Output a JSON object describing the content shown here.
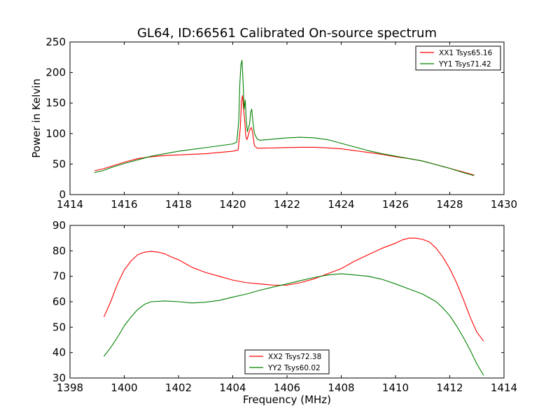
{
  "title": "GL64, ID:66561 Calibrated On-source spectrum",
  "colors": {
    "red": "#ff0000",
    "green": "#008000"
  },
  "chart_data": [
    {
      "type": "line",
      "xlim": [
        1414,
        1430
      ],
      "ylim": [
        0,
        250
      ],
      "xticks": [
        1414,
        1416,
        1418,
        1420,
        1422,
        1424,
        1426,
        1428,
        1430
      ],
      "yticks": [
        0,
        50,
        100,
        150,
        200,
        250
      ],
      "xlabel": "",
      "ylabel": "Power in Kelvin",
      "legend_position": "top-right",
      "grid": false,
      "series": [
        {
          "name": "XX1 Tsys65.16",
          "color": "#ff0000",
          "points": [
            [
              1414.9,
              39
            ],
            [
              1415.2,
              42
            ],
            [
              1415.5,
              46
            ],
            [
              1416,
              53
            ],
            [
              1416.5,
              59
            ],
            [
              1417,
              62
            ],
            [
              1417.5,
              64
            ],
            [
              1418,
              65
            ],
            [
              1418.5,
              66
            ],
            [
              1419,
              67
            ],
            [
              1419.5,
              69
            ],
            [
              1420,
              71
            ],
            [
              1420.2,
              73
            ],
            [
              1420.28,
              110
            ],
            [
              1420.32,
              152
            ],
            [
              1420.36,
              162
            ],
            [
              1420.4,
              140
            ],
            [
              1420.44,
              122
            ],
            [
              1420.48,
              96
            ],
            [
              1420.52,
              90
            ],
            [
              1420.56,
              95
            ],
            [
              1420.6,
              102
            ],
            [
              1420.64,
              107
            ],
            [
              1420.68,
              110
            ],
            [
              1420.72,
              105
            ],
            [
              1420.76,
              92
            ],
            [
              1420.8,
              80
            ],
            [
              1420.9,
              76
            ],
            [
              1421,
              76
            ],
            [
              1421.5,
              76.5
            ],
            [
              1422,
              77
            ],
            [
              1422.5,
              77.5
            ],
            [
              1423,
              77.5
            ],
            [
              1423.5,
              76.5
            ],
            [
              1424,
              75
            ],
            [
              1424.5,
              72
            ],
            [
              1425,
              69
            ],
            [
              1425.5,
              66
            ],
            [
              1426,
              62
            ],
            [
              1426.5,
              59
            ],
            [
              1427,
              55
            ],
            [
              1427.5,
              49
            ],
            [
              1428,
              43
            ],
            [
              1428.5,
              37
            ],
            [
              1428.9,
              32
            ]
          ]
        },
        {
          "name": "YY1 Tsys71.42",
          "color": "#008000",
          "points": [
            [
              1414.9,
              36
            ],
            [
              1415.2,
              39
            ],
            [
              1415.5,
              44
            ],
            [
              1416,
              51
            ],
            [
              1416.5,
              57
            ],
            [
              1417,
              63
            ],
            [
              1417.5,
              67
            ],
            [
              1418,
              71
            ],
            [
              1418.5,
              74
            ],
            [
              1419,
              77
            ],
            [
              1419.5,
              80
            ],
            [
              1420,
              83
            ],
            [
              1420.15,
              86
            ],
            [
              1420.22,
              120
            ],
            [
              1420.26,
              180
            ],
            [
              1420.3,
              212
            ],
            [
              1420.34,
              220
            ],
            [
              1420.38,
              185
            ],
            [
              1420.42,
              140
            ],
            [
              1420.46,
              155
            ],
            [
              1420.5,
              120
            ],
            [
              1420.54,
              103
            ],
            [
              1420.58,
              110
            ],
            [
              1420.62,
              115
            ],
            [
              1420.66,
              135
            ],
            [
              1420.7,
              140
            ],
            [
              1420.74,
              120
            ],
            [
              1420.8,
              100
            ],
            [
              1420.9,
              91
            ],
            [
              1421,
              89
            ],
            [
              1421.5,
              91
            ],
            [
              1422,
              93
            ],
            [
              1422.5,
              94
            ],
            [
              1423,
              93
            ],
            [
              1423.5,
              90
            ],
            [
              1424,
              84
            ],
            [
              1424.5,
              78
            ],
            [
              1425,
              72
            ],
            [
              1425.5,
              67
            ],
            [
              1426,
              63
            ],
            [
              1426.5,
              59
            ],
            [
              1427,
              55
            ],
            [
              1427.5,
              49
            ],
            [
              1428,
              43
            ],
            [
              1428.5,
              36
            ],
            [
              1428.9,
              31
            ]
          ]
        }
      ]
    },
    {
      "type": "line",
      "xlim": [
        1398,
        1414
      ],
      "ylim": [
        30,
        90
      ],
      "xticks": [
        1398,
        1400,
        1402,
        1404,
        1406,
        1408,
        1410,
        1412,
        1414
      ],
      "yticks": [
        30,
        40,
        50,
        60,
        70,
        80,
        90
      ],
      "xlabel": "Frequency (MHz)",
      "ylabel": "",
      "legend_position": "bottom-center",
      "grid": false,
      "series": [
        {
          "name": "XX2 Tsys72.38",
          "color": "#ff0000",
          "points": [
            [
              1399.25,
              54
            ],
            [
              1399.5,
              60
            ],
            [
              1399.75,
              67
            ],
            [
              1400,
              72.5
            ],
            [
              1400.25,
              76
            ],
            [
              1400.5,
              78.5
            ],
            [
              1400.75,
              79.5
            ],
            [
              1401,
              79.8
            ],
            [
              1401.25,
              79.5
            ],
            [
              1401.5,
              78.8
            ],
            [
              1401.75,
              77.5
            ],
            [
              1402,
              76.5
            ],
            [
              1402.25,
              75
            ],
            [
              1402.5,
              73.5
            ],
            [
              1402.75,
              72.5
            ],
            [
              1403,
              71.5
            ],
            [
              1403.5,
              70
            ],
            [
              1404,
              68.5
            ],
            [
              1404.5,
              67.5
            ],
            [
              1405,
              67
            ],
            [
              1405.5,
              66.5
            ],
            [
              1406,
              66.5
            ],
            [
              1406.5,
              67.5
            ],
            [
              1407,
              69
            ],
            [
              1407.5,
              71
            ],
            [
              1408,
              73
            ],
            [
              1408.5,
              76
            ],
            [
              1409,
              78.5
            ],
            [
              1409.5,
              81
            ],
            [
              1410,
              83
            ],
            [
              1410.25,
              84.3
            ],
            [
              1410.5,
              85
            ],
            [
              1410.75,
              85
            ],
            [
              1411,
              84.5
            ],
            [
              1411.25,
              83.5
            ],
            [
              1411.5,
              81
            ],
            [
              1411.75,
              77.5
            ],
            [
              1412,
              73
            ],
            [
              1412.25,
              67.5
            ],
            [
              1412.5,
              61
            ],
            [
              1412.75,
              54
            ],
            [
              1413,
              48
            ],
            [
              1413.25,
              44.5
            ]
          ]
        },
        {
          "name": "YY2 Tsys60.02",
          "color": "#008000",
          "points": [
            [
              1399.25,
              38.5
            ],
            [
              1399.5,
              42
            ],
            [
              1399.75,
              46
            ],
            [
              1400,
              50.5
            ],
            [
              1400.25,
              54
            ],
            [
              1400.5,
              57
            ],
            [
              1400.75,
              59
            ],
            [
              1401,
              60
            ],
            [
              1401.5,
              60.3
            ],
            [
              1402,
              60
            ],
            [
              1402.5,
              59.5
            ],
            [
              1403,
              59.8
            ],
            [
              1403.5,
              60.5
            ],
            [
              1404,
              61.8
            ],
            [
              1404.5,
              63
            ],
            [
              1405,
              64.5
            ],
            [
              1405.5,
              65.8
            ],
            [
              1406,
              67
            ],
            [
              1406.5,
              68.3
            ],
            [
              1407,
              69.5
            ],
            [
              1407.5,
              70.5
            ],
            [
              1408,
              71
            ],
            [
              1408.5,
              70.5
            ],
            [
              1409,
              70
            ],
            [
              1409.5,
              68.8
            ],
            [
              1410,
              67
            ],
            [
              1410.5,
              65
            ],
            [
              1411,
              63
            ],
            [
              1411.5,
              60
            ],
            [
              1411.75,
              57.5
            ],
            [
              1412,
              54.5
            ],
            [
              1412.25,
              50.5
            ],
            [
              1412.5,
              46
            ],
            [
              1412.75,
              41
            ],
            [
              1413,
              35.5
            ],
            [
              1413.25,
              31
            ]
          ]
        }
      ]
    }
  ]
}
